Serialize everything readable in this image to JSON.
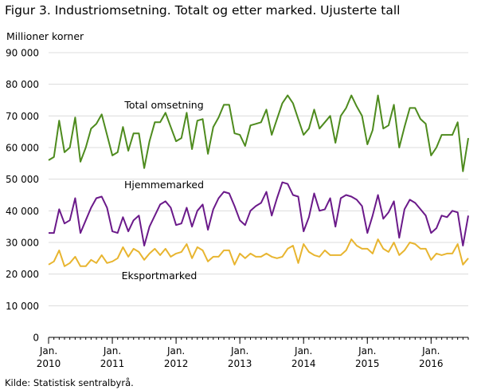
{
  "figure_title": "Figur 3. Industriomsetning. Totalt og etter marked. Ujusterte tall",
  "source": "Kilde: Statistisk sentralbyrå.",
  "colors": {
    "total": "#4e8b1e",
    "hjemme": "#6b1a8a",
    "eksport": "#e8b530",
    "grid": "#dcdcdc",
    "axis": "#000000"
  },
  "chart_data": {
    "type": "line",
    "ylabel": "Millioner  korner",
    "ylim": [
      0,
      90000
    ],
    "yticks": [
      0,
      10000,
      20000,
      30000,
      40000,
      50000,
      60000,
      70000,
      80000,
      90000
    ],
    "ytick_labels": [
      "0",
      "10 000",
      "20 000",
      "30 000",
      "40 000",
      "50 000",
      "60 000",
      "70 000",
      "80 000",
      "90 000"
    ],
    "x_start": "2010-01",
    "x_labels": [
      {
        "month": "Jan.",
        "year": "2010"
      },
      {
        "month": "Jan.",
        "year": "2011"
      },
      {
        "month": "Jan.",
        "year": "2012"
      },
      {
        "month": "Jan.",
        "year": "2013"
      },
      {
        "month": "Jan.",
        "year": "2014"
      },
      {
        "month": "Jan.",
        "year": "2015"
      },
      {
        "month": "Jan.",
        "year": "2016"
      }
    ],
    "series": [
      {
        "name": "Total omsetning",
        "color": "#4e8b1e",
        "values": [
          56000,
          57000,
          68500,
          58500,
          60000,
          69500,
          55500,
          60000,
          66000,
          67500,
          70500,
          64000,
          57500,
          58500,
          66500,
          59000,
          64500,
          64500,
          53500,
          62000,
          68000,
          68000,
          71000,
          66500,
          62000,
          63000,
          71000,
          59500,
          68500,
          69000,
          58000,
          66500,
          69500,
          73500,
          73500,
          64500,
          64000,
          60500,
          67000,
          67500,
          68000,
          72000,
          64000,
          69000,
          74000,
          76500,
          74000,
          69000,
          64000,
          66000,
          72000,
          66000,
          68000,
          70000,
          61500,
          70000,
          72500,
          76500,
          73000,
          70000,
          61000,
          65500,
          76500,
          66000,
          67000,
          73500,
          60000,
          66500,
          72500,
          72500,
          69000,
          67500,
          57500,
          60000,
          64000,
          64000,
          64000,
          68000,
          52500,
          63000
        ]
      },
      {
        "name": "Hjemmemarked",
        "color": "#6b1a8a",
        "values": [
          33000,
          33000,
          40500,
          36000,
          37000,
          44000,
          33000,
          37000,
          41000,
          44000,
          44500,
          41000,
          33500,
          33000,
          38000,
          33500,
          37000,
          38500,
          29000,
          35000,
          38500,
          42000,
          43000,
          41000,
          35500,
          36000,
          41000,
          35000,
          40000,
          42000,
          34000,
          40500,
          44000,
          46000,
          45500,
          41500,
          37000,
          35500,
          40000,
          41500,
          42500,
          46000,
          38500,
          44000,
          49000,
          48500,
          45000,
          44500,
          33500,
          38000,
          45500,
          40000,
          40500,
          44000,
          35000,
          44000,
          45000,
          44500,
          43500,
          41500,
          33000,
          38500,
          45000,
          37500,
          39500,
          43000,
          31500,
          40500,
          43500,
          42500,
          40500,
          38500,
          33000,
          34500,
          38500,
          38000,
          40000,
          39500,
          29000,
          38500
        ]
      },
      {
        "name": "Eksportmarked",
        "color": "#e8b530",
        "values": [
          23000,
          24000,
          27500,
          22500,
          23500,
          25500,
          22500,
          22500,
          24500,
          23500,
          26000,
          23500,
          24000,
          25000,
          28500,
          25500,
          28000,
          27000,
          24500,
          26500,
          28000,
          26000,
          28000,
          25500,
          26500,
          27000,
          29500,
          25000,
          28500,
          27500,
          24000,
          25500,
          25500,
          27500,
          27500,
          23000,
          26500,
          25000,
          26500,
          25500,
          25500,
          26500,
          25500,
          25000,
          25500,
          28000,
          29000,
          23500,
          29500,
          27000,
          26000,
          25500,
          27500,
          26000,
          26000,
          26000,
          27500,
          31000,
          29000,
          28000,
          28000,
          26500,
          31000,
          28000,
          27000,
          30000,
          26000,
          27500,
          30000,
          29500,
          28000,
          28000,
          24500,
          26500,
          26000,
          26500,
          26500,
          29500,
          23000,
          25000
        ]
      }
    ],
    "annotations": [
      {
        "series": 0,
        "text": "Total omsetning"
      },
      {
        "series": 1,
        "text": "Hjemmemarked"
      },
      {
        "series": 2,
        "text": "Eksportmarked"
      }
    ]
  }
}
